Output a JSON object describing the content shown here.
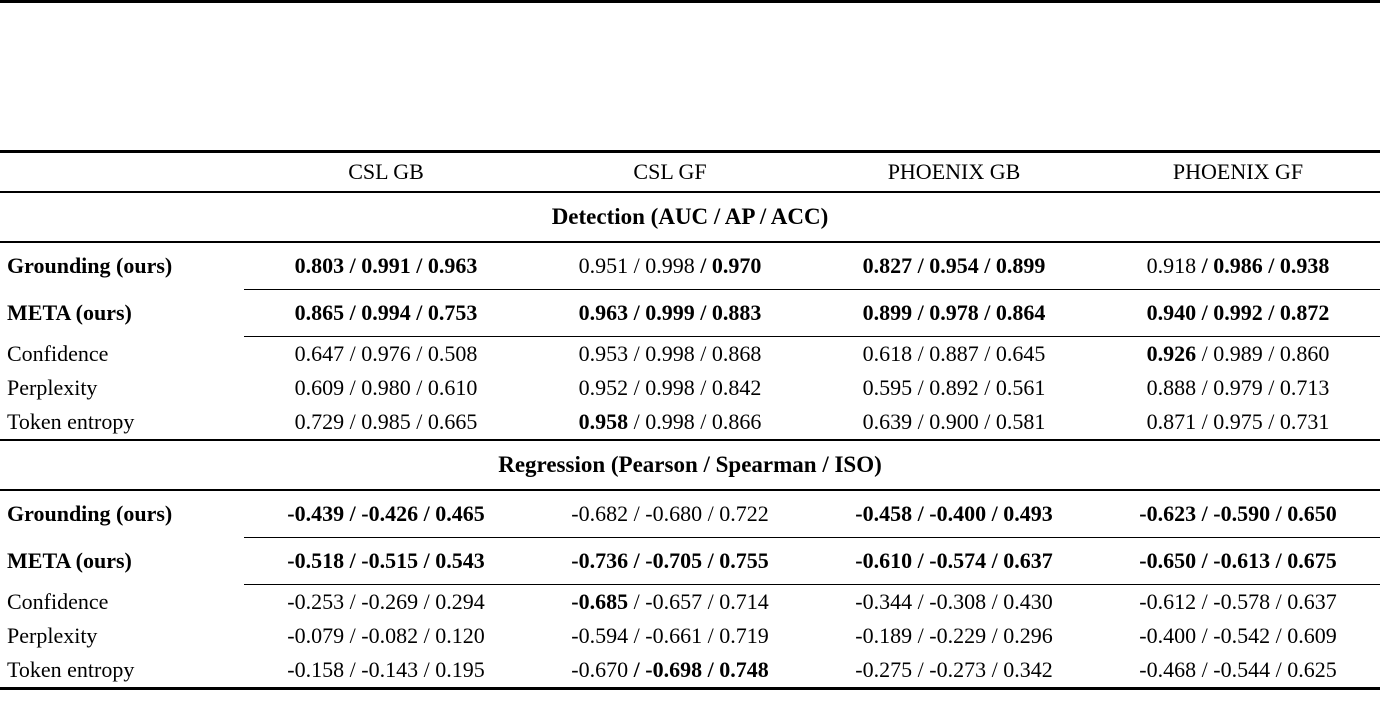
{
  "colors": {
    "text": "#000000",
    "background": "#ffffff",
    "rule": "#000000"
  },
  "table": {
    "separator": " / ",
    "columns": [
      "",
      "CSL GB",
      "CSL GF",
      "PHOENIX GB",
      "PHOENIX GF"
    ],
    "sections": [
      {
        "title": "Detection (AUC / AP / ACC)",
        "rows": [
          {
            "label": "Grounding (ours)",
            "bold_label": true,
            "kind": "main",
            "cells": [
              {
                "v": [
                  "0.803",
                  "0.991",
                  "0.963"
                ],
                "b": [
                  1,
                  1,
                  1
                ]
              },
              {
                "v": [
                  "0.951",
                  "0.998",
                  "0.970"
                ],
                "b": [
                  0,
                  0,
                  1
                ]
              },
              {
                "v": [
                  "0.827",
                  "0.954",
                  "0.899"
                ],
                "b": [
                  1,
                  1,
                  1
                ]
              },
              {
                "v": [
                  "0.918",
                  "0.986",
                  "0.938"
                ],
                "b": [
                  0,
                  1,
                  1
                ]
              }
            ]
          },
          {
            "label": "META (ours)",
            "bold_label": true,
            "kind": "main",
            "cells": [
              {
                "v": [
                  "0.865",
                  "0.994",
                  "0.753"
                ],
                "b": [
                  1,
                  1,
                  1
                ]
              },
              {
                "v": [
                  "0.963",
                  "0.999",
                  "0.883"
                ],
                "b": [
                  1,
                  1,
                  1
                ]
              },
              {
                "v": [
                  "0.899",
                  "0.978",
                  "0.864"
                ],
                "b": [
                  1,
                  1,
                  1
                ]
              },
              {
                "v": [
                  "0.940",
                  "0.992",
                  "0.872"
                ],
                "b": [
                  1,
                  1,
                  1
                ]
              }
            ]
          },
          {
            "label": "Confidence",
            "bold_label": false,
            "kind": "tight",
            "cells": [
              {
                "v": [
                  "0.647",
                  "0.976",
                  "0.508"
                ],
                "b": [
                  0,
                  0,
                  0
                ]
              },
              {
                "v": [
                  "0.953",
                  "0.998",
                  "0.868"
                ],
                "b": [
                  0,
                  0,
                  0
                ]
              },
              {
                "v": [
                  "0.618",
                  "0.887",
                  "0.645"
                ],
                "b": [
                  0,
                  0,
                  0
                ]
              },
              {
                "v": [
                  "0.926",
                  "0.989",
                  "0.860"
                ],
                "b": [
                  1,
                  0,
                  0
                ]
              }
            ]
          },
          {
            "label": "Perplexity",
            "bold_label": false,
            "kind": "tight",
            "cells": [
              {
                "v": [
                  "0.609",
                  "0.980",
                  "0.610"
                ],
                "b": [
                  0,
                  0,
                  0
                ]
              },
              {
                "v": [
                  "0.952",
                  "0.998",
                  "0.842"
                ],
                "b": [
                  0,
                  0,
                  0
                ]
              },
              {
                "v": [
                  "0.595",
                  "0.892",
                  "0.561"
                ],
                "b": [
                  0,
                  0,
                  0
                ]
              },
              {
                "v": [
                  "0.888",
                  "0.979",
                  "0.713"
                ],
                "b": [
                  0,
                  0,
                  0
                ]
              }
            ]
          },
          {
            "label": "Token entropy",
            "bold_label": false,
            "kind": "tight",
            "cells": [
              {
                "v": [
                  "0.729",
                  "0.985",
                  "0.665"
                ],
                "b": [
                  0,
                  0,
                  0
                ]
              },
              {
                "v": [
                  "0.958",
                  "0.998",
                  "0.866"
                ],
                "b": [
                  1,
                  0,
                  0
                ]
              },
              {
                "v": [
                  "0.639",
                  "0.900",
                  "0.581"
                ],
                "b": [
                  0,
                  0,
                  0
                ]
              },
              {
                "v": [
                  "0.871",
                  "0.975",
                  "0.731"
                ],
                "b": [
                  0,
                  0,
                  0
                ]
              }
            ]
          }
        ]
      },
      {
        "title": "Regression (Pearson / Spearman / ISO)",
        "rows": [
          {
            "label": "Grounding (ours)",
            "bold_label": true,
            "kind": "main",
            "cells": [
              {
                "v": [
                  "-0.439",
                  "-0.426",
                  "0.465"
                ],
                "b": [
                  1,
                  1,
                  1
                ]
              },
              {
                "v": [
                  "-0.682",
                  "-0.680",
                  "0.722"
                ],
                "b": [
                  0,
                  0,
                  0
                ]
              },
              {
                "v": [
                  "-0.458",
                  "-0.400",
                  "0.493"
                ],
                "b": [
                  1,
                  1,
                  1
                ]
              },
              {
                "v": [
                  "-0.623",
                  "-0.590",
                  "0.650"
                ],
                "b": [
                  1,
                  1,
                  1
                ]
              }
            ]
          },
          {
            "label": "META (ours)",
            "bold_label": true,
            "kind": "main",
            "cells": [
              {
                "v": [
                  "-0.518",
                  "-0.515",
                  "0.543"
                ],
                "b": [
                  1,
                  1,
                  1
                ]
              },
              {
                "v": [
                  "-0.736",
                  "-0.705",
                  "0.755"
                ],
                "b": [
                  1,
                  1,
                  1
                ]
              },
              {
                "v": [
                  "-0.610",
                  "-0.574",
                  "0.637"
                ],
                "b": [
                  1,
                  1,
                  1
                ]
              },
              {
                "v": [
                  "-0.650",
                  "-0.613",
                  "0.675"
                ],
                "b": [
                  1,
                  1,
                  1
                ]
              }
            ]
          },
          {
            "label": "Confidence",
            "bold_label": false,
            "kind": "tight",
            "cells": [
              {
                "v": [
                  "-0.253",
                  "-0.269",
                  "0.294"
                ],
                "b": [
                  0,
                  0,
                  0
                ]
              },
              {
                "v": [
                  "-0.685",
                  "-0.657",
                  "0.714"
                ],
                "b": [
                  1,
                  0,
                  0
                ]
              },
              {
                "v": [
                  "-0.344",
                  "-0.308",
                  "0.430"
                ],
                "b": [
                  0,
                  0,
                  0
                ]
              },
              {
                "v": [
                  "-0.612",
                  "-0.578",
                  "0.637"
                ],
                "b": [
                  0,
                  0,
                  0
                ]
              }
            ]
          },
          {
            "label": "Perplexity",
            "bold_label": false,
            "kind": "tight",
            "cells": [
              {
                "v": [
                  "-0.079",
                  "-0.082",
                  "0.120"
                ],
                "b": [
                  0,
                  0,
                  0
                ]
              },
              {
                "v": [
                  "-0.594",
                  "-0.661",
                  "0.719"
                ],
                "b": [
                  0,
                  0,
                  0
                ]
              },
              {
                "v": [
                  "-0.189",
                  "-0.229",
                  "0.296"
                ],
                "b": [
                  0,
                  0,
                  0
                ]
              },
              {
                "v": [
                  "-0.400",
                  "-0.542",
                  "0.609"
                ],
                "b": [
                  0,
                  0,
                  0
                ]
              }
            ]
          },
          {
            "label": "Token entropy",
            "bold_label": false,
            "kind": "tight",
            "cells": [
              {
                "v": [
                  "-0.158",
                  "-0.143",
                  "0.195"
                ],
                "b": [
                  0,
                  0,
                  0
                ]
              },
              {
                "v": [
                  "-0.670",
                  "-0.698",
                  "0.748"
                ],
                "b": [
                  0,
                  1,
                  1
                ]
              },
              {
                "v": [
                  "-0.275",
                  "-0.273",
                  "0.342"
                ],
                "b": [
                  0,
                  0,
                  0
                ]
              },
              {
                "v": [
                  "-0.468",
                  "-0.544",
                  "0.625"
                ],
                "b": [
                  0,
                  0,
                  0
                ]
              }
            ]
          }
        ]
      }
    ]
  }
}
